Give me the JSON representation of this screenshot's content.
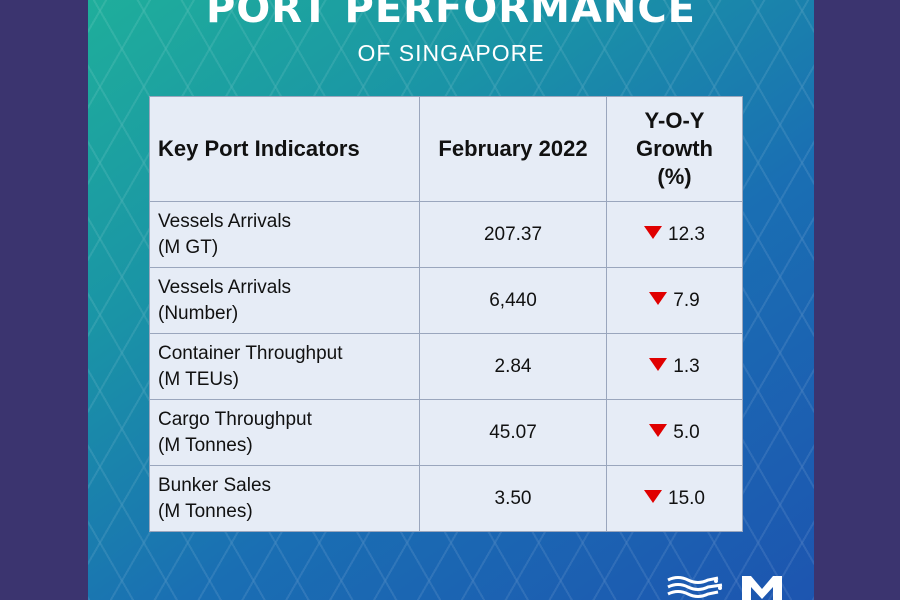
{
  "header": {
    "title": "PORT PERFORMANCE",
    "subtitle": "OF SINGAPORE"
  },
  "table": {
    "headers": [
      "Key Port Indicators",
      "February 2022",
      "Y-O-Y Growth (%)"
    ],
    "rows": [
      {
        "line1": "Vessels Arrivals",
        "line2": "(M GT)",
        "value": "207.37",
        "growth": "12.3"
      },
      {
        "line1": "Vessels Arrivals",
        "line2": "(Number)",
        "value": "6,440",
        "growth": "7.9"
      },
      {
        "line1": "Container Throughput",
        "line2": "(M TEUs)",
        "value": "2.84",
        "growth": "1.3"
      },
      {
        "line1": "Cargo Throughput",
        "line2": "(M Tonnes)",
        "value": "45.07",
        "growth": "5.0"
      },
      {
        "line1": "Bunker Sales",
        "line2": "(M Tonnes)",
        "value": "3.50",
        "growth": "15.0"
      }
    ]
  },
  "icons": {
    "growth_direction": "down-triangle-icon",
    "logos": [
      "wave-logo-icon",
      "m-logo-icon"
    ]
  },
  "colors": {
    "decline": "#e00000",
    "table_bg": "#e6ecf6",
    "gradient_start": "#1fae9b",
    "gradient_end": "#1d55b0"
  }
}
